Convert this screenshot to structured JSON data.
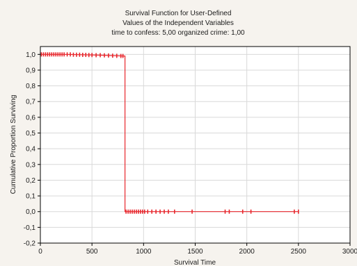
{
  "chart_data": {
    "type": "line",
    "title_lines": [
      "Survival Function for User-Defined",
      "Values of the Independent Variables",
      "time to confess: 5,00 organized crime: 1,00"
    ],
    "xlabel": "Survival Time",
    "ylabel": "Cumulative Proportion Surviving",
    "xlim": [
      0,
      3000
    ],
    "ylim": [
      -0.2,
      1.05
    ],
    "x_ticks": [
      0,
      500,
      1000,
      1500,
      2000,
      2500,
      3000
    ],
    "x_tick_labels": [
      "0",
      "500",
      "1000",
      "1500",
      "2000",
      "2500",
      "3000"
    ],
    "y_ticks": [
      -0.2,
      -0.1,
      0.0,
      0.1,
      0.2,
      0.3,
      0.4,
      0.5,
      0.6,
      0.7,
      0.8,
      0.9,
      1.0
    ],
    "y_tick_labels": [
      "-0,2",
      "-0,1",
      "0,0",
      "0,1",
      "0,2",
      "0,3",
      "0,4",
      "0,5",
      "0,6",
      "0,7",
      "0,8",
      "0,9",
      "1,0"
    ],
    "grid": true,
    "line_color": "#e8262c",
    "series": [
      {
        "step_points": [
          {
            "x": 0,
            "y": 1.0
          },
          {
            "x": 250,
            "y": 1.0
          },
          {
            "x": 600,
            "y": 0.995
          },
          {
            "x": 800,
            "y": 0.99
          },
          {
            "x": 820,
            "y": 0.99
          },
          {
            "x": 820,
            "y": 0.0
          },
          {
            "x": 2500,
            "y": 0.0
          }
        ],
        "censored_marks": [
          {
            "x": 10,
            "y": 1.0
          },
          {
            "x": 30,
            "y": 1.0
          },
          {
            "x": 50,
            "y": 1.0
          },
          {
            "x": 70,
            "y": 1.0
          },
          {
            "x": 90,
            "y": 1.0
          },
          {
            "x": 110,
            "y": 1.0
          },
          {
            "x": 130,
            "y": 1.0
          },
          {
            "x": 150,
            "y": 1.0
          },
          {
            "x": 170,
            "y": 1.0
          },
          {
            "x": 190,
            "y": 1.0
          },
          {
            "x": 210,
            "y": 1.0
          },
          {
            "x": 230,
            "y": 1.0
          },
          {
            "x": 260,
            "y": 1.0
          },
          {
            "x": 290,
            "y": 1.0
          },
          {
            "x": 320,
            "y": 0.998
          },
          {
            "x": 350,
            "y": 0.998
          },
          {
            "x": 380,
            "y": 0.998
          },
          {
            "x": 410,
            "y": 0.997
          },
          {
            "x": 440,
            "y": 0.997
          },
          {
            "x": 470,
            "y": 0.996
          },
          {
            "x": 500,
            "y": 0.996
          },
          {
            "x": 540,
            "y": 0.995
          },
          {
            "x": 580,
            "y": 0.995
          },
          {
            "x": 620,
            "y": 0.994
          },
          {
            "x": 660,
            "y": 0.993
          },
          {
            "x": 700,
            "y": 0.992
          },
          {
            "x": 740,
            "y": 0.991
          },
          {
            "x": 780,
            "y": 0.99
          },
          {
            "x": 800,
            "y": 0.99
          },
          {
            "x": 830,
            "y": 0.0
          },
          {
            "x": 850,
            "y": 0.0
          },
          {
            "x": 870,
            "y": 0.0
          },
          {
            "x": 890,
            "y": 0.0
          },
          {
            "x": 910,
            "y": 0.0
          },
          {
            "x": 930,
            "y": 0.0
          },
          {
            "x": 950,
            "y": 0.0
          },
          {
            "x": 970,
            "y": 0.0
          },
          {
            "x": 990,
            "y": 0.0
          },
          {
            "x": 1010,
            "y": 0.0
          },
          {
            "x": 1040,
            "y": 0.0
          },
          {
            "x": 1080,
            "y": 0.0
          },
          {
            "x": 1120,
            "y": 0.0
          },
          {
            "x": 1160,
            "y": 0.0
          },
          {
            "x": 1200,
            "y": 0.0
          },
          {
            "x": 1240,
            "y": 0.0
          },
          {
            "x": 1300,
            "y": 0.0
          },
          {
            "x": 1470,
            "y": 0.0
          },
          {
            "x": 1790,
            "y": 0.0
          },
          {
            "x": 1830,
            "y": 0.0
          },
          {
            "x": 1960,
            "y": 0.0
          },
          {
            "x": 2040,
            "y": 0.0
          },
          {
            "x": 2460,
            "y": 0.0
          },
          {
            "x": 2500,
            "y": 0.0
          }
        ]
      }
    ]
  }
}
